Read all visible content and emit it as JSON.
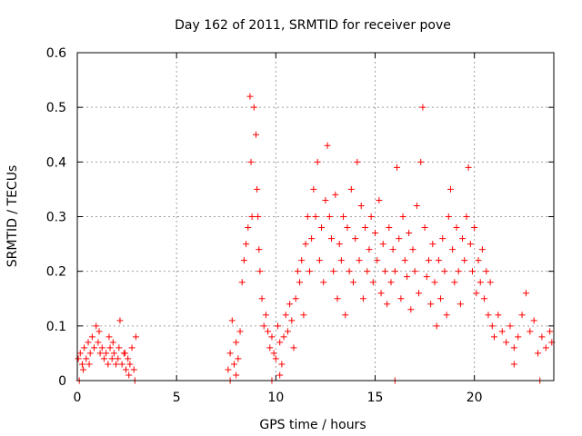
{
  "chart_data": {
    "type": "scatter",
    "title": "Day 162 of 2011, SRMTID for receiver pove",
    "xlabel": "GPS time / hours",
    "ylabel": "SRMTID / TECUs",
    "xlim": [
      0,
      24
    ],
    "ylim": [
      0,
      0.6
    ],
    "xticks": [
      0,
      5,
      10,
      15,
      20
    ],
    "yticks": [
      0,
      0.1,
      0.2,
      0.3,
      0.4,
      0.5,
      0.6
    ],
    "grid": true,
    "marker": "+",
    "color": "#ff0000",
    "series": [
      {
        "values": [
          [
            0.05,
            0.04
          ],
          [
            0.15,
            0.05
          ],
          [
            0.25,
            0.03
          ],
          [
            0.35,
            0.06
          ],
          [
            0.45,
            0.04
          ],
          [
            0.55,
            0.07
          ],
          [
            0.65,
            0.05
          ],
          [
            0.75,
            0.08
          ],
          [
            0.85,
            0.06
          ],
          [
            0.95,
            0.1
          ],
          [
            1.05,
            0.07
          ],
          [
            1.15,
            0.05
          ],
          [
            1.25,
            0.06
          ],
          [
            1.35,
            0.04
          ],
          [
            1.45,
            0.05
          ],
          [
            1.55,
            0.03
          ],
          [
            1.65,
            0.06
          ],
          [
            1.75,
            0.04
          ],
          [
            1.85,
            0.05
          ],
          [
            1.95,
            0.03
          ],
          [
            2.05,
            0.04
          ],
          [
            2.15,
            0.11
          ],
          [
            2.25,
            0.03
          ],
          [
            2.35,
            0.05
          ],
          [
            2.45,
            0.02
          ],
          [
            2.55,
            0.04
          ],
          [
            2.65,
            0.03
          ],
          [
            2.75,
            0.06
          ],
          [
            2.85,
            0.02
          ],
          [
            2.95,
            0.08
          ],
          [
            0.1,
            0.0
          ],
          [
            0.6,
            0.03
          ],
          [
            1.1,
            0.09
          ],
          [
            1.6,
            0.08
          ],
          [
            2.1,
            0.06
          ],
          [
            2.6,
            0.01
          ],
          [
            2.9,
            0.0
          ],
          [
            0.3,
            0.02
          ],
          [
            1.8,
            0.07
          ],
          [
            2.4,
            0.05
          ],
          [
            7.6,
            0.02
          ],
          [
            7.7,
            0.05
          ],
          [
            7.8,
            0.11
          ],
          [
            7.9,
            0.03
          ],
          [
            8.0,
            0.07
          ],
          [
            8.1,
            0.04
          ],
          [
            8.2,
            0.09
          ],
          [
            8.3,
            0.18
          ],
          [
            8.4,
            0.22
          ],
          [
            8.5,
            0.25
          ],
          [
            8.6,
            0.28
          ],
          [
            8.7,
            0.52
          ],
          [
            8.75,
            0.4
          ],
          [
            8.8,
            0.3
          ],
          [
            8.9,
            0.5
          ],
          [
            9.0,
            0.45
          ],
          [
            9.05,
            0.35
          ],
          [
            9.1,
            0.3
          ],
          [
            9.15,
            0.24
          ],
          [
            9.2,
            0.2
          ],
          [
            9.3,
            0.15
          ],
          [
            9.4,
            0.1
          ],
          [
            9.5,
            0.12
          ],
          [
            9.6,
            0.09
          ],
          [
            9.7,
            0.06
          ],
          [
            9.8,
            0.08
          ],
          [
            9.9,
            0.05
          ],
          [
            10.0,
            0.04
          ],
          [
            10.1,
            0.1
          ],
          [
            10.2,
            0.07
          ],
          [
            10.3,
            0.03
          ],
          [
            10.4,
            0.08
          ],
          [
            10.5,
            0.12
          ],
          [
            10.6,
            0.09
          ],
          [
            10.7,
            0.14
          ],
          [
            10.8,
            0.11
          ],
          [
            10.9,
            0.06
          ],
          [
            11.0,
            0.15
          ],
          [
            11.1,
            0.2
          ],
          [
            11.2,
            0.18
          ],
          [
            11.3,
            0.22
          ],
          [
            11.4,
            0.12
          ],
          [
            11.5,
            0.25
          ],
          [
            11.6,
            0.3
          ],
          [
            11.7,
            0.2
          ],
          [
            11.8,
            0.26
          ],
          [
            11.9,
            0.35
          ],
          [
            12.0,
            0.3
          ],
          [
            12.1,
            0.4
          ],
          [
            12.2,
            0.22
          ],
          [
            12.3,
            0.28
          ],
          [
            12.4,
            0.18
          ],
          [
            12.5,
            0.33
          ],
          [
            12.6,
            0.43
          ],
          [
            12.7,
            0.3
          ],
          [
            12.8,
            0.26
          ],
          [
            12.9,
            0.2
          ],
          [
            13.0,
            0.34
          ],
          [
            13.1,
            0.15
          ],
          [
            13.2,
            0.25
          ],
          [
            13.3,
            0.22
          ],
          [
            13.4,
            0.3
          ],
          [
            13.5,
            0.12
          ],
          [
            13.6,
            0.28
          ],
          [
            13.7,
            0.2
          ],
          [
            13.8,
            0.35
          ],
          [
            13.9,
            0.18
          ],
          [
            14.0,
            0.26
          ],
          [
            14.1,
            0.4
          ],
          [
            14.2,
            0.22
          ],
          [
            14.3,
            0.32
          ],
          [
            14.4,
            0.15
          ],
          [
            14.5,
            0.28
          ],
          [
            14.6,
            0.2
          ],
          [
            14.7,
            0.24
          ],
          [
            14.8,
            0.3
          ],
          [
            14.9,
            0.18
          ],
          [
            15.0,
            0.27
          ],
          [
            15.1,
            0.22
          ],
          [
            15.2,
            0.33
          ],
          [
            15.3,
            0.16
          ],
          [
            15.4,
            0.25
          ],
          [
            15.5,
            0.2
          ],
          [
            15.6,
            0.14
          ],
          [
            15.7,
            0.28
          ],
          [
            15.8,
            0.18
          ],
          [
            15.9,
            0.24
          ],
          [
            16.0,
            0.2
          ],
          [
            16.1,
            0.39
          ],
          [
            16.2,
            0.26
          ],
          [
            16.3,
            0.15
          ],
          [
            16.4,
            0.3
          ],
          [
            16.5,
            0.22
          ],
          [
            16.6,
            0.19
          ],
          [
            16.7,
            0.27
          ],
          [
            16.8,
            0.13
          ],
          [
            16.9,
            0.24
          ],
          [
            17.0,
            0.2
          ],
          [
            17.1,
            0.32
          ],
          [
            17.2,
            0.16
          ],
          [
            17.3,
            0.4
          ],
          [
            17.4,
            0.5
          ],
          [
            17.5,
            0.28
          ],
          [
            17.6,
            0.19
          ],
          [
            17.7,
            0.22
          ],
          [
            17.8,
            0.14
          ],
          [
            17.9,
            0.25
          ],
          [
            18.0,
            0.18
          ],
          [
            18.1,
            0.1
          ],
          [
            18.2,
            0.22
          ],
          [
            18.3,
            0.15
          ],
          [
            18.4,
            0.26
          ],
          [
            18.5,
            0.2
          ],
          [
            18.6,
            0.12
          ],
          [
            18.7,
            0.3
          ],
          [
            18.8,
            0.35
          ],
          [
            18.9,
            0.24
          ],
          [
            19.0,
            0.18
          ],
          [
            19.1,
            0.28
          ],
          [
            19.2,
            0.2
          ],
          [
            19.3,
            0.14
          ],
          [
            19.4,
            0.26
          ],
          [
            19.5,
            0.22
          ],
          [
            19.6,
            0.3
          ],
          [
            19.7,
            0.39
          ],
          [
            19.8,
            0.25
          ],
          [
            19.9,
            0.2
          ],
          [
            20.0,
            0.28
          ],
          [
            20.1,
            0.16
          ],
          [
            20.2,
            0.22
          ],
          [
            20.3,
            0.18
          ],
          [
            20.4,
            0.24
          ],
          [
            20.5,
            0.15
          ],
          [
            20.6,
            0.2
          ],
          [
            20.7,
            0.12
          ],
          [
            20.8,
            0.18
          ],
          [
            20.9,
            0.1
          ],
          [
            21.0,
            0.08
          ],
          [
            21.2,
            0.12
          ],
          [
            21.4,
            0.09
          ],
          [
            21.6,
            0.07
          ],
          [
            21.8,
            0.1
          ],
          [
            22.0,
            0.06
          ],
          [
            22.2,
            0.08
          ],
          [
            22.4,
            0.12
          ],
          [
            22.6,
            0.16
          ],
          [
            22.8,
            0.09
          ],
          [
            23.0,
            0.11
          ],
          [
            23.2,
            0.05
          ],
          [
            23.4,
            0.08
          ],
          [
            23.6,
            0.06
          ],
          [
            23.8,
            0.09
          ],
          [
            23.9,
            0.07
          ],
          [
            7.7,
            0.0
          ],
          [
            8.0,
            0.01
          ],
          [
            9.8,
            0.0
          ],
          [
            10.2,
            0.01
          ],
          [
            16.0,
            0.0
          ],
          [
            23.3,
            0.0
          ],
          [
            22.0,
            0.03
          ]
        ]
      }
    ]
  }
}
